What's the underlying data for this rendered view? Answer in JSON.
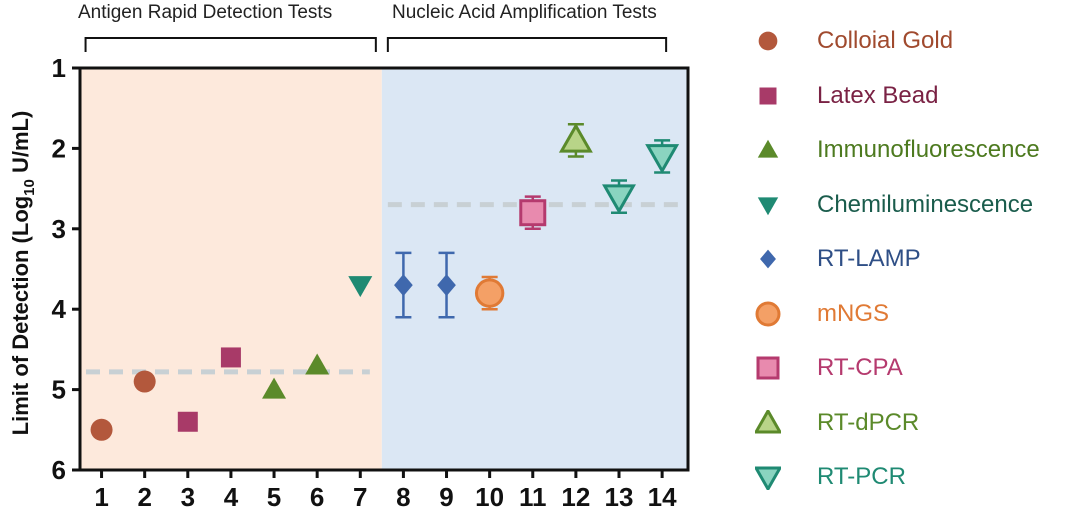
{
  "chart_data": {
    "type": "scatter",
    "title": "",
    "ylabel": "Limit of Detection (Log10 U/mL)",
    "ylabel_parts": [
      "Limit of Detection (Log",
      "10",
      " U/mL)"
    ],
    "xlabel": "",
    "ylim": [
      1,
      6
    ],
    "y_inverted": true,
    "y_ticks": [
      1,
      2,
      3,
      4,
      5,
      6
    ],
    "x_ticks": [
      1,
      2,
      3,
      4,
      5,
      6,
      7,
      8,
      9,
      10,
      11,
      12,
      13,
      14
    ],
    "groups": [
      {
        "label": "Antigen Rapid Detection Tests",
        "x_from": 1,
        "x_to": 7,
        "bg": "#fde9dc",
        "threshold": 4.78
      },
      {
        "label": "Nucleic Acid Amplification Tests",
        "x_from": 8,
        "x_to": 14,
        "bg": "#dbe7f4",
        "threshold": 2.7
      }
    ],
    "series": [
      {
        "name": "Colloial Gold",
        "marker": "circle",
        "color": "#b3583c",
        "fill": "#b3583c",
        "text_color": "#a04a2e",
        "points": [
          {
            "x": 1,
            "y": 5.5
          },
          {
            "x": 2,
            "y": 4.9
          }
        ]
      },
      {
        "name": "Latex Bead",
        "marker": "square",
        "color": "#a83a68",
        "fill": "#a83a68",
        "text_color": "#7a2244",
        "points": [
          {
            "x": 3,
            "y": 5.4
          },
          {
            "x": 4,
            "y": 4.6
          }
        ]
      },
      {
        "name": "Immunofluorescence",
        "marker": "triangle-up",
        "color": "#5b8a2a",
        "fill": "#5b8a2a",
        "text_color": "#4d7a1f",
        "points": [
          {
            "x": 5,
            "y": 5.0
          },
          {
            "x": 6,
            "y": 4.7
          }
        ]
      },
      {
        "name": "Chemiluminescence",
        "marker": "triangle-down",
        "color": "#1f8a73",
        "fill": "#1f8a73",
        "text_color": "#1a5c4c",
        "points": [
          {
            "x": 7,
            "y": 3.7
          }
        ]
      },
      {
        "name": "RT-LAMP",
        "marker": "diamond",
        "color": "#3f68ad",
        "fill": "#3f68ad",
        "text_color": "#2f4f86",
        "points": [
          {
            "x": 8,
            "y": 3.7,
            "err": 0.4
          },
          {
            "x": 9,
            "y": 3.7,
            "err": 0.4
          }
        ]
      },
      {
        "name": "mNGS",
        "marker": "circle-open",
        "color": "#e07a35",
        "fill": "#f4a066",
        "text_color": "#e07a35",
        "points": [
          {
            "x": 10,
            "y": 3.8,
            "err": 0.2
          }
        ]
      },
      {
        "name": "RT-CPA",
        "marker": "square-open",
        "color": "#b53a6e",
        "fill": "#e88aae",
        "text_color": "#b53a6e",
        "points": [
          {
            "x": 11,
            "y": 2.8,
            "err": 0.2
          }
        ]
      },
      {
        "name": "RT-dPCR",
        "marker": "triangle-up-open",
        "color": "#5b8a2a",
        "fill": "#b8d488",
        "text_color": "#5b8a2a",
        "points": [
          {
            "x": 12,
            "y": 1.9,
            "err": 0.2
          }
        ]
      },
      {
        "name": "RT-PCR",
        "marker": "triangle-down-open",
        "color": "#1f8a73",
        "fill": "#8ad4c0",
        "text_color": "#1f8a73",
        "points": [
          {
            "x": 13,
            "y": 2.6,
            "err": 0.2
          },
          {
            "x": 14,
            "y": 2.1,
            "err": 0.2
          }
        ]
      }
    ]
  }
}
